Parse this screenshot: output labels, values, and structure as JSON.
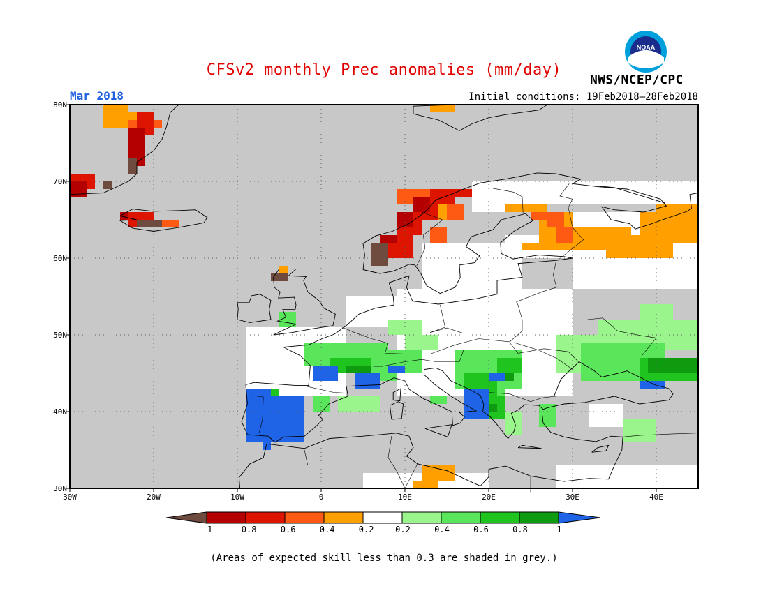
{
  "header": {
    "title": "CFSv2 monthly Prec anomalies (mm/day)",
    "month": "Mar 2018",
    "initial_conditions": "Initial conditions: 19Feb2018–28Feb2018",
    "agency": "NWS/NCEP/CPC",
    "logo_text": "NOAA"
  },
  "map": {
    "lon_range": [
      -30,
      45
    ],
    "lat_range": [
      30,
      80
    ],
    "lat_labels": [
      "80N",
      "70N",
      "60N",
      "50N",
      "40N",
      "30N"
    ],
    "lon_labels": [
      "30W",
      "20W",
      "10W",
      "0",
      "10E",
      "20E",
      "30E",
      "40E"
    ]
  },
  "legend": {
    "labels": [
      "-1",
      "-0.8",
      "-0.6",
      "-0.4",
      "-0.2",
      "0.2",
      "0.4",
      "0.6",
      "0.8",
      "1"
    ],
    "bin_colors": [
      "#6e4b3e",
      "#b40000",
      "#dc1400",
      "#ff5a14",
      "#ffa000",
      "#ffffff",
      "#9af58c",
      "#5ae65a",
      "#1fc41f",
      "#0f9b0f",
      "#1f64e6"
    ]
  },
  "footnote": "(Areas of expected skill less than 0.3 are shaded in grey.)"
}
